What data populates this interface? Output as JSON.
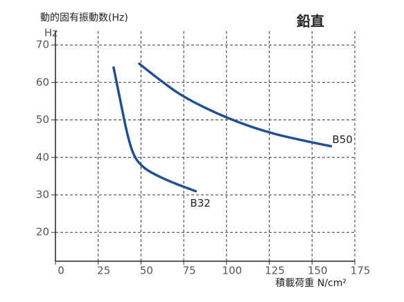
{
  "chart_data": {
    "type": "line",
    "title": "動的固有振動数(Hz)",
    "subtitle": "鉛直",
    "y_unit": "Hz",
    "x_label": "積載荷重 N/cm²",
    "xlim": [
      0,
      175
    ],
    "xticks": [
      0,
      25,
      50,
      75,
      100,
      125,
      150,
      175
    ],
    "ylim": [
      12.3,
      73.7
    ],
    "yticks": [
      20,
      30,
      40,
      50,
      60,
      70
    ],
    "grid": true,
    "series": [
      {
        "name": "B50",
        "color": "#1f4f96",
        "x": [
          49,
          60,
          75,
          100,
          125,
          150,
          161
        ],
        "values": [
          65,
          61,
          56,
          50.5,
          46.5,
          44,
          43
        ]
      },
      {
        "name": "B32",
        "color": "#1f4f96",
        "x": [
          34,
          38,
          42,
          46,
          52,
          60,
          70,
          82
        ],
        "values": [
          64,
          55,
          46,
          40,
          37,
          35,
          33,
          31
        ]
      }
    ]
  }
}
